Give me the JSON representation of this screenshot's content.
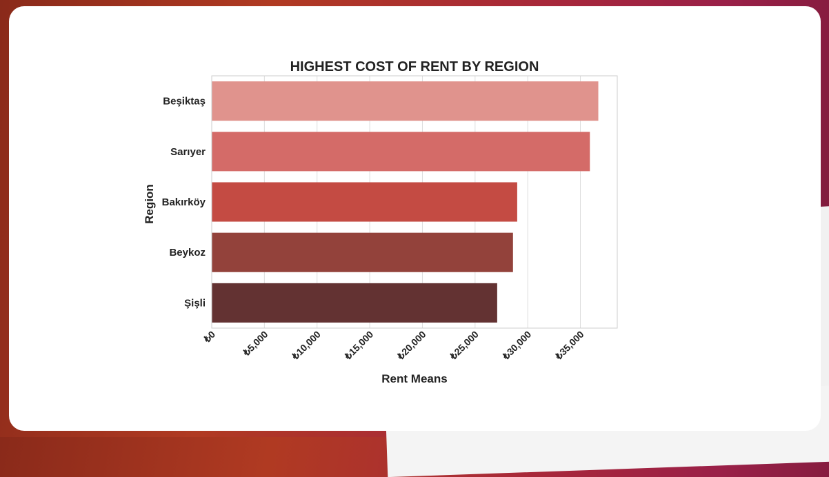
{
  "chart_data": {
    "type": "bar",
    "orientation": "horizontal",
    "title": "HIGHEST COST OF RENT BY REGION",
    "xlabel": "Rent Means",
    "ylabel": "Region",
    "categories": [
      "Beşiktaş",
      "Sarıyer",
      "Bakırköy",
      "Beykoz",
      "Şişli"
    ],
    "values": [
      36700,
      35900,
      29000,
      28600,
      27100
    ],
    "colors": [
      "#e0938d",
      "#d46b68",
      "#c44b43",
      "#93423b",
      "#633232"
    ],
    "xlim": [
      0,
      38500
    ],
    "xticks": [
      0,
      5000,
      10000,
      15000,
      20000,
      25000,
      30000,
      35000
    ],
    "xtick_labels": [
      "₺0",
      "₺5,000",
      "₺10,000",
      "₺15,000",
      "₺20,000",
      "₺25,000",
      "₺30,000",
      "₺35,000"
    ],
    "grid": "vertical"
  }
}
